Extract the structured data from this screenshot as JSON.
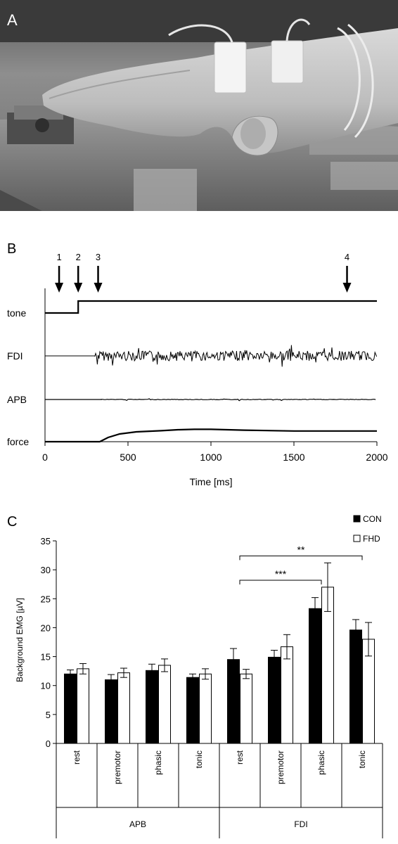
{
  "panels": {
    "a": "A",
    "b": "B",
    "c": "C"
  },
  "chart_data": [
    {
      "type": "line",
      "panel": "B",
      "xlabel": "Time [ms]",
      "xlim": [
        0,
        2000
      ],
      "xticks": [
        0,
        500,
        1000,
        1500,
        2000
      ],
      "arrows": [
        {
          "label": "1",
          "x": 85
        },
        {
          "label": "2",
          "x": 200
        },
        {
          "label": "3",
          "x": 320
        },
        {
          "label": "4",
          "x": 1820
        }
      ],
      "series": [
        {
          "name": "tone",
          "step_at": 200,
          "low": 0,
          "high": 1
        },
        {
          "name": "FDI",
          "onset": 300
        },
        {
          "name": "APB",
          "onset": 340
        },
        {
          "name": "force",
          "x": [
            0,
            330,
            380,
            450,
            550,
            700,
            800,
            900,
            1000,
            1200,
            1500,
            2000
          ],
          "y": [
            0,
            0,
            0.3,
            0.55,
            0.7,
            0.78,
            0.85,
            0.88,
            0.88,
            0.82,
            0.76,
            0.76
          ]
        }
      ]
    },
    {
      "type": "bar",
      "panel": "C",
      "ylabel": "Background EMG [µV]",
      "ylim": [
        0,
        35
      ],
      "yticks": [
        0,
        5,
        10,
        15,
        20,
        25,
        30,
        35
      ],
      "categories": [
        "rest",
        "premotor",
        "phasic",
        "tonic",
        "rest",
        "premotor",
        "phasic",
        "tonic"
      ],
      "groups": [
        {
          "label": "APB",
          "start": 0,
          "count": 4
        },
        {
          "label": "FDI",
          "start": 4,
          "count": 4
        }
      ],
      "series": [
        {
          "name": "CON",
          "color": "#000000",
          "values": [
            12.0,
            11.0,
            12.6,
            11.4,
            14.5,
            14.9,
            23.3,
            19.6
          ],
          "errors": [
            0.7,
            0.9,
            1.1,
            0.6,
            1.9,
            1.2,
            1.9,
            1.8
          ]
        },
        {
          "name": "FHD",
          "color": "#ffffff",
          "values": [
            12.9,
            12.2,
            13.5,
            12.0,
            12.0,
            16.7,
            27.0,
            18.0
          ],
          "errors": [
            0.9,
            0.8,
            1.1,
            0.9,
            0.8,
            2.1,
            4.2,
            2.9
          ]
        }
      ],
      "significance": [
        {
          "label": "**",
          "from": 4,
          "to": 7,
          "y": 32.4
        },
        {
          "label": "***",
          "from": 4,
          "to": 6,
          "y": 28.2
        }
      ],
      "legend_position": "top-right"
    }
  ]
}
